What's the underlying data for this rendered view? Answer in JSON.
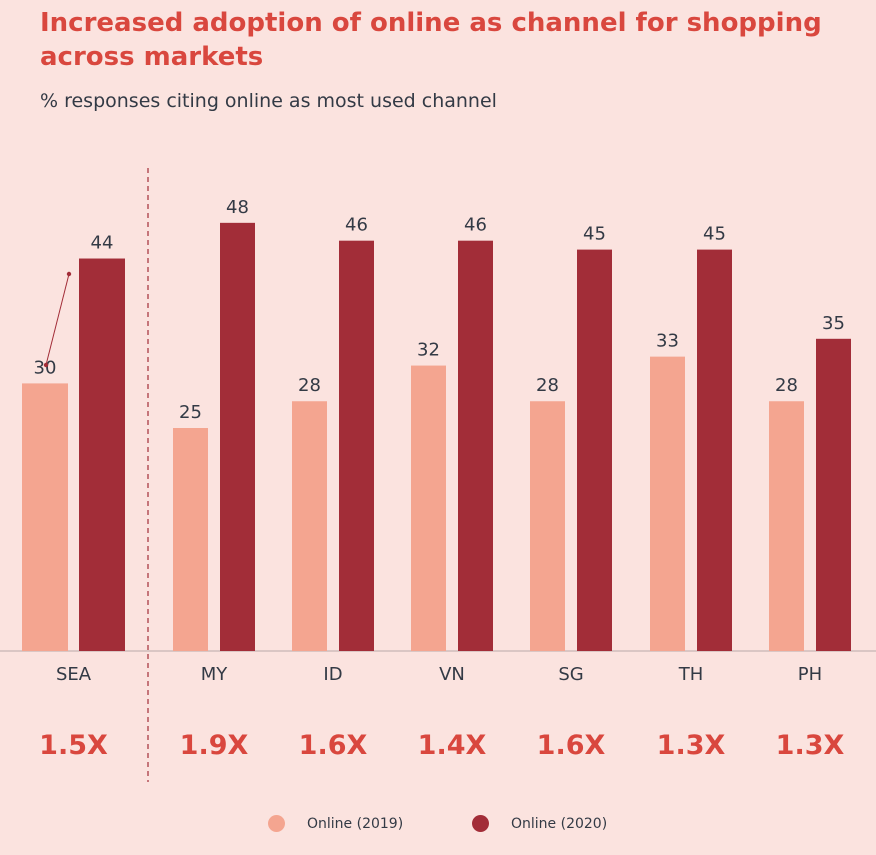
{
  "title": "Increased adoption of online as channel for shopping across markets",
  "subtitle": "% responses citing online as most used channel",
  "colors": {
    "online_2019": "#f4a590",
    "online_2020": "#a22d38",
    "multiplier": "#d9473e",
    "axis_text": "#333a45",
    "background": "#fbe3df"
  },
  "chart_data": {
    "type": "bar",
    "categories": [
      "SEA",
      "MY",
      "ID",
      "VN",
      "SG",
      "TH",
      "PH"
    ],
    "series": [
      {
        "name": "Online (2019)",
        "values": [
          30,
          25,
          28,
          32,
          28,
          33,
          28
        ]
      },
      {
        "name": "Online (2020)",
        "values": [
          44,
          48,
          46,
          46,
          45,
          45,
          35
        ]
      }
    ],
    "multipliers": [
      "1.5X",
      "1.9X",
      "1.6X",
      "1.4X",
      "1.6X",
      "1.3X",
      "1.3X"
    ],
    "title": "Increased adoption of online as channel for shopping across markets",
    "subtitle": "% responses citing online as most used channel",
    "xlabel": "",
    "ylabel": "",
    "grid": false,
    "legend_position": "bottom"
  },
  "legend": [
    {
      "label": "Online (2019)"
    },
    {
      "label": "Online (2020)"
    }
  ]
}
